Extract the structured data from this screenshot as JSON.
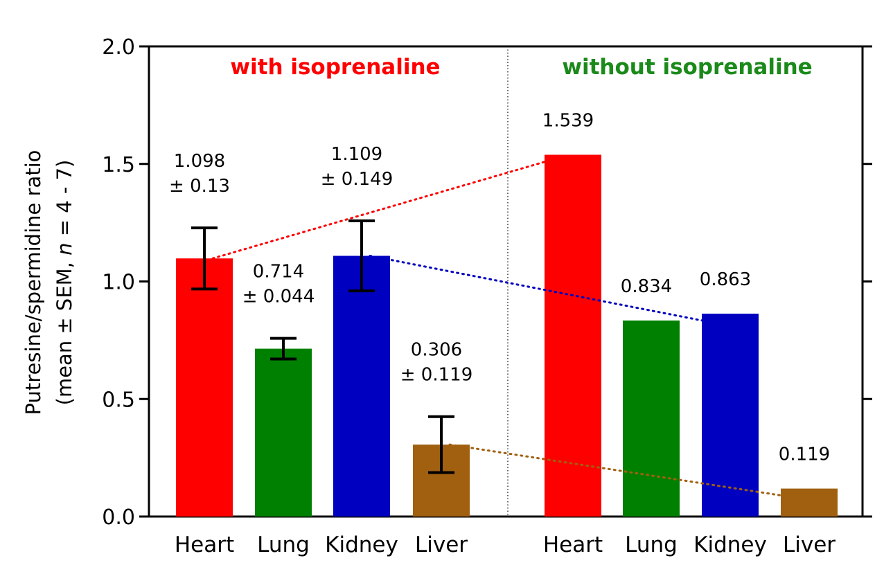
{
  "chart_data": {
    "type": "bar",
    "ylabel_line1": "Putresine/spermidine ratio",
    "ylabel_line2_pre": "(mean ± SEM, ",
    "ylabel_line2_n": "n",
    "ylabel_line2_post": " = 4 - 7)",
    "ylim": [
      0,
      2.0
    ],
    "yticks": [
      "0.0",
      "0.5",
      "1.0",
      "1.5",
      "2.0"
    ],
    "ytick_values": [
      0,
      0.5,
      1.0,
      1.5,
      2.0
    ],
    "groups": [
      {
        "title": "with isoprenaline",
        "title_color": "#ff0000",
        "bars": [
          {
            "category": "Heart",
            "value": 1.098,
            "error": 0.13,
            "color": "#ff0000",
            "label1": "1.098",
            "label2": "± 0.13"
          },
          {
            "category": "Lung",
            "value": 0.714,
            "error": 0.044,
            "color": "#008000",
            "label1": "0.714",
            "label2": "± 0.044"
          },
          {
            "category": "Kidney",
            "value": 1.109,
            "error": 0.149,
            "color": "#0000c0",
            "label1": "1.109",
            "label2": "± 0.149"
          },
          {
            "category": "Liver",
            "value": 0.306,
            "error": 0.119,
            "color": "#a06010",
            "label1": "0.306",
            "label2": "± 0.119"
          }
        ]
      },
      {
        "title": "without isoprenaline",
        "title_color": "#1a8a1a",
        "bars": [
          {
            "category": "Heart",
            "value": 1.539,
            "color": "#ff0000",
            "label1": "1.539"
          },
          {
            "category": "Lung",
            "value": 0.834,
            "color": "#008000",
            "label1": "0.834"
          },
          {
            "category": "Kidney",
            "value": 0.863,
            "color": "#0000c0",
            "label1": "0.863"
          },
          {
            "category": "Liver",
            "value": 0.119,
            "color": "#a06010",
            "label1": "0.119"
          }
        ]
      }
    ],
    "connectors": [
      {
        "from_bar": 0,
        "to_bar": 0,
        "color": "#ff0000"
      },
      {
        "from_bar": 2,
        "to_bar": 2,
        "color": "#0000c0"
      },
      {
        "from_bar": 3,
        "to_bar": 3,
        "color": "#a06010"
      }
    ]
  }
}
